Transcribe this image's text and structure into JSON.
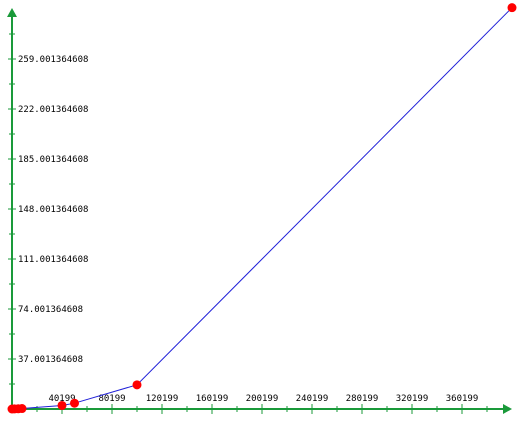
{
  "colors": {
    "axis": "#1a9a3a",
    "line": "#2020d8",
    "point": "#ff0000",
    "background": "#ffffff"
  },
  "chart_data": {
    "type": "line",
    "title": "",
    "xlabel": "",
    "ylabel": "",
    "grid": false,
    "legend": "none",
    "xlim": [
      199,
      400199
    ],
    "ylim": [
      0.001364608,
      296.001364608
    ],
    "x_ticks": [
      40199,
      80199,
      120199,
      160199,
      200199,
      240199,
      280199,
      320199,
      360199
    ],
    "x_tick_labels": [
      "40199",
      "80199",
      "120199",
      "160199",
      "200199",
      "240199",
      "280199",
      "320199",
      "360199"
    ],
    "y_ticks": [
      37.001364608,
      74.001364608,
      111.001364608,
      148.001364608,
      185.001364608,
      222.001364608,
      259.001364608
    ],
    "y_tick_labels": [
      "37.001364608",
      "74.001364608",
      "111.001364608",
      "148.001364608",
      "185.001364608",
      "222.001364608",
      "259.001364608"
    ],
    "series": [
      {
        "x": [
          199,
          2199,
          5199,
          8199,
          40199,
          50199,
          100199,
          400199
        ],
        "y": [
          0.001364608,
          0.05,
          0.15,
          0.35,
          2.6,
          4.3,
          17.9,
          297.0
        ]
      }
    ]
  }
}
